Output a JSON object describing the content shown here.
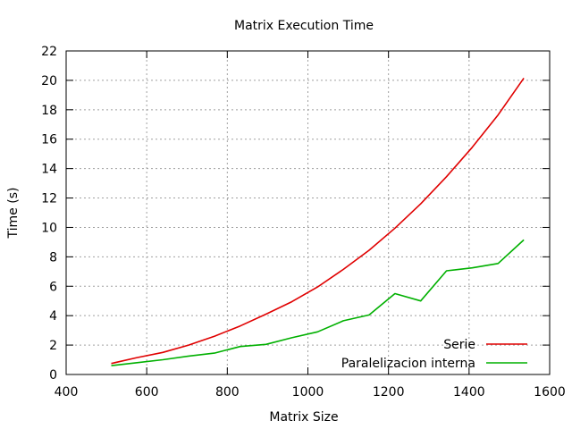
{
  "chart_data": {
    "type": "line",
    "title": "Matrix Execution Time",
    "xlabel": "Matrix Size",
    "ylabel": "Time (s)",
    "xlim": [
      400,
      1600
    ],
    "ylim": [
      0,
      22
    ],
    "xticks": [
      400,
      600,
      800,
      1000,
      1200,
      1400,
      1600
    ],
    "yticks": [
      0,
      2,
      4,
      6,
      8,
      10,
      12,
      14,
      16,
      18,
      20,
      22
    ],
    "grid": true,
    "legend_position": "bottom-right",
    "series": [
      {
        "name": "Serie",
        "color": "#e00000",
        "x": [
          512,
          576,
          640,
          704,
          768,
          832,
          896,
          960,
          1024,
          1088,
          1152,
          1216,
          1280,
          1344,
          1408,
          1472,
          1536
        ],
        "y": [
          0.75,
          1.15,
          1.5,
          2.0,
          2.6,
          3.3,
          4.1,
          4.95,
          5.95,
          7.15,
          8.45,
          9.95,
          11.6,
          13.45,
          15.45,
          17.65,
          20.15
        ]
      },
      {
        "name": "Paralelizacion interna",
        "color": "#00b000",
        "x": [
          512,
          576,
          640,
          704,
          768,
          832,
          896,
          960,
          1024,
          1088,
          1152,
          1216,
          1280,
          1344,
          1408,
          1472,
          1536
        ],
        "y": [
          0.6,
          0.8,
          1.0,
          1.25,
          1.45,
          1.9,
          2.05,
          2.5,
          2.9,
          3.65,
          4.05,
          5.5,
          5.0,
          7.05,
          7.25,
          7.55,
          9.15
        ]
      }
    ]
  }
}
